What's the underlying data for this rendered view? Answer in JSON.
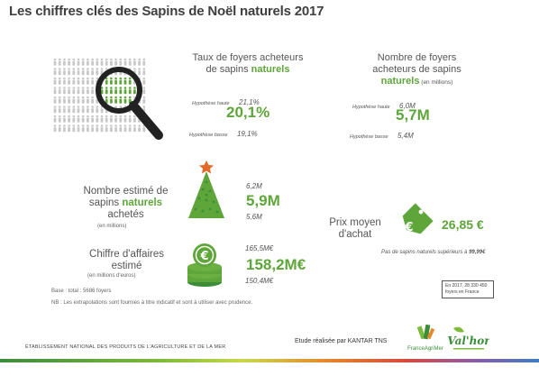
{
  "title": "Les chiffres clés des Sapins de Noël naturels 2017",
  "foyers_acheteurs_taux": {
    "label_line1": "Taux de foyers acheteurs",
    "label_line2_a": "de sapins ",
    "label_line2_b": "naturels",
    "hypo_haute_label": "Hypothèse haute",
    "hypo_haute_value": "21,1%",
    "value": "20,1%",
    "hypo_basse_label": "Hypothèse basse",
    "hypo_basse_value": "19,1%"
  },
  "foyers_acheteurs_nombre": {
    "label_line1": "Nombre de foyers",
    "label_line2": "acheteurs  de sapins",
    "label_line3_a": "naturels",
    "label_line3_b": " (en millions)",
    "hypo_haute_label": "Hypothèse haute",
    "hypo_haute_value": "6,0M",
    "value": "5,7M",
    "hypo_basse_label": "Hypothèse basse",
    "hypo_basse_value": "5,4M"
  },
  "sapins_achetes": {
    "label_line1": "Nombre estimé  de",
    "label_line2_a": "sapins ",
    "label_line2_b": "naturels",
    "label_line3": "achetés",
    "unit": "(en millions)",
    "high": "6,2M",
    "value": "5,9M",
    "low": "5,6M"
  },
  "chiffre_affaires": {
    "label_line1": "Chiffre d'affaires",
    "label_line2": "estimé",
    "unit": "en millions  d'euros)",
    "high": "165,5M€",
    "value": "158,2M€",
    "low": "150,4M€"
  },
  "prix_moyen": {
    "label_line1": "Prix moyen",
    "label_line2": "d'achat",
    "value": "26,85 €",
    "note_a": "Pas de sapins naturels supérieurs à ",
    "note_b": "99,99€"
  },
  "base_note": {
    "line1": "Base : total : 5686 foyers",
    "line2": "NB : Les extrapolations sont fournies à titre indicatif et sont à utiliser avec prudence."
  },
  "france_note": {
    "line1": "En 2017,  28  330  450",
    "line2": "foyers  en France"
  },
  "footer": {
    "etablissement": "ÉTABLISSEMENT NATIONAL DES PRODUITS DE L'AGRICULTURE ET DE LA MER",
    "etude": "Etude réalisée  par KANTAR TNS",
    "logo1": "FranceAgriMer",
    "logo2": "Val'hor"
  },
  "colors": {
    "green": "#5fa63a",
    "dark_green": "#3b8d3a",
    "tree_star": "#e2692a",
    "magnifier": "#222222"
  },
  "icons": {
    "magnifier": "magnifier-icon",
    "tree": "christmas-tree-icon",
    "coins": "euro-coins-icon",
    "price_tag": "euro-price-tag-icon"
  }
}
